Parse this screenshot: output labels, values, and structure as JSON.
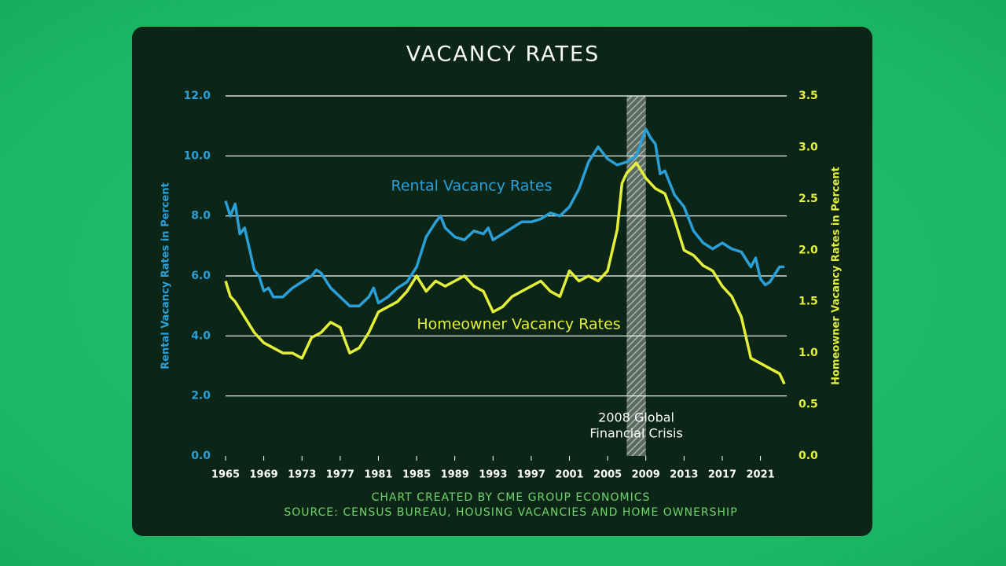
{
  "chart_data": {
    "type": "line",
    "title": "VACANCY RATES",
    "ylabel": "Rental Vacancy Rates in Percent",
    "y2label": "Homeowner Vacancy Rates in Percent",
    "footer": [
      "CHART CREATED BY CME GROUP ECONOMICS",
      "SOURCE: CENSUS BUREAU, HOUSING VACANCIES AND HOME OWNERSHIP"
    ],
    "xlim": [
      1965,
      2023.75
    ],
    "xticks": [
      1965,
      1969,
      1973,
      1977,
      1981,
      1985,
      1989,
      1993,
      1997,
      2001,
      2005,
      2009,
      2013,
      2017,
      2021
    ],
    "ylim": [
      0,
      12
    ],
    "yticks": [
      {
        "value": 0,
        "label": "0.0"
      },
      {
        "value": 2,
        "label": "2.0"
      },
      {
        "value": 4,
        "label": "4.0"
      },
      {
        "value": 6,
        "label": "6.0"
      },
      {
        "value": 8,
        "label": "8.0"
      },
      {
        "value": 10,
        "label": "10.0"
      },
      {
        "value": 12,
        "label": "12.0"
      }
    ],
    "y2lim": [
      0,
      3.5
    ],
    "y2ticks": [
      {
        "value": 0,
        "label": "0.0"
      },
      0.5,
      {
        "value": 1,
        "label": "1.0"
      },
      1.5,
      {
        "value": 2,
        "label": "2.0"
      },
      2.5,
      {
        "value": 3,
        "label": "3.0"
      },
      3.5
    ],
    "grid": true,
    "series": [
      {
        "name": "Rental Vacancy Rates",
        "color": "#2a9fd8",
        "x": [
          1965,
          1965.5,
          1966,
          1966.5,
          1967,
          1967.5,
          1968,
          1968.5,
          1969,
          1969.5,
          1970,
          1971,
          1972,
          1973,
          1974,
          1974.5,
          1975,
          1976,
          1977,
          1978,
          1979,
          1980,
          1980.5,
          1981,
          1982,
          1983,
          1984,
          1985,
          1986,
          1987,
          1987.5,
          1988,
          1989,
          1990,
          1991,
          1992,
          1992.5,
          1993,
          1994,
          1995,
          1996,
          1997,
          1998,
          1999,
          2000,
          2001,
          2002,
          2003,
          2004,
          2005,
          2006,
          2007,
          2008,
          2009,
          2009.5,
          2010,
          2010.5,
          2011,
          2012,
          2013,
          2014,
          2015,
          2016,
          2017,
          2018,
          2019,
          2020,
          2020.5,
          2021,
          2021.5,
          2022,
          2023,
          2023.5
        ],
        "values": [
          8.5,
          8.0,
          8.4,
          7.4,
          7.6,
          6.9,
          6.2,
          6.0,
          5.5,
          5.6,
          5.3,
          5.3,
          5.6,
          5.8,
          6.0,
          6.2,
          6.1,
          5.6,
          5.3,
          5.0,
          5.0,
          5.3,
          5.6,
          5.1,
          5.3,
          5.6,
          5.8,
          6.3,
          7.3,
          7.8,
          8.0,
          7.6,
          7.3,
          7.2,
          7.5,
          7.4,
          7.6,
          7.2,
          7.4,
          7.6,
          7.8,
          7.8,
          7.9,
          8.1,
          8.0,
          8.3,
          8.9,
          9.8,
          10.3,
          9.9,
          9.7,
          9.8,
          10.0,
          10.9,
          10.6,
          10.4,
          9.4,
          9.5,
          8.7,
          8.3,
          7.5,
          7.1,
          6.9,
          7.1,
          6.9,
          6.8,
          6.3,
          6.6,
          5.9,
          5.7,
          5.8,
          6.3,
          6.3
        ]
      },
      {
        "name": "Homeowner Vacancy Rates",
        "color": "#e4ef3a",
        "axis": "y2",
        "x": [
          1965,
          1965.5,
          1966,
          1967,
          1968,
          1969,
          1970,
          1971,
          1972,
          1973,
          1974,
          1975,
          1976,
          1977,
          1978,
          1979,
          1980,
          1981,
          1982,
          1983,
          1984,
          1985,
          1986,
          1987,
          1988,
          1989,
          1990,
          1991,
          1992,
          1993,
          1994,
          1995,
          1996,
          1997,
          1998,
          1999,
          2000,
          2001,
          2002,
          2003,
          2004,
          2005,
          2006,
          2006.5,
          2007,
          2008,
          2009,
          2010,
          2011,
          2012,
          2013,
          2014,
          2015,
          2016,
          2017,
          2018,
          2019,
          2020,
          2021,
          2022,
          2023,
          2023.5
        ],
        "values": [
          1.7,
          1.55,
          1.5,
          1.35,
          1.2,
          1.1,
          1.05,
          1.0,
          1.0,
          0.95,
          1.15,
          1.2,
          1.3,
          1.25,
          1.0,
          1.05,
          1.2,
          1.4,
          1.45,
          1.5,
          1.6,
          1.75,
          1.6,
          1.7,
          1.65,
          1.7,
          1.75,
          1.65,
          1.6,
          1.4,
          1.45,
          1.55,
          1.6,
          1.65,
          1.7,
          1.6,
          1.55,
          1.8,
          1.7,
          1.75,
          1.7,
          1.8,
          2.2,
          2.65,
          2.75,
          2.85,
          2.7,
          2.6,
          2.55,
          2.3,
          2.0,
          1.95,
          1.85,
          1.8,
          1.65,
          1.55,
          1.35,
          0.95,
          0.9,
          0.85,
          0.8,
          0.7
        ]
      }
    ],
    "annotations": [
      {
        "text": [
          "2008 Global",
          "Financial Crisis"
        ],
        "x": [
          2007.0,
          2009.0
        ]
      }
    ]
  }
}
